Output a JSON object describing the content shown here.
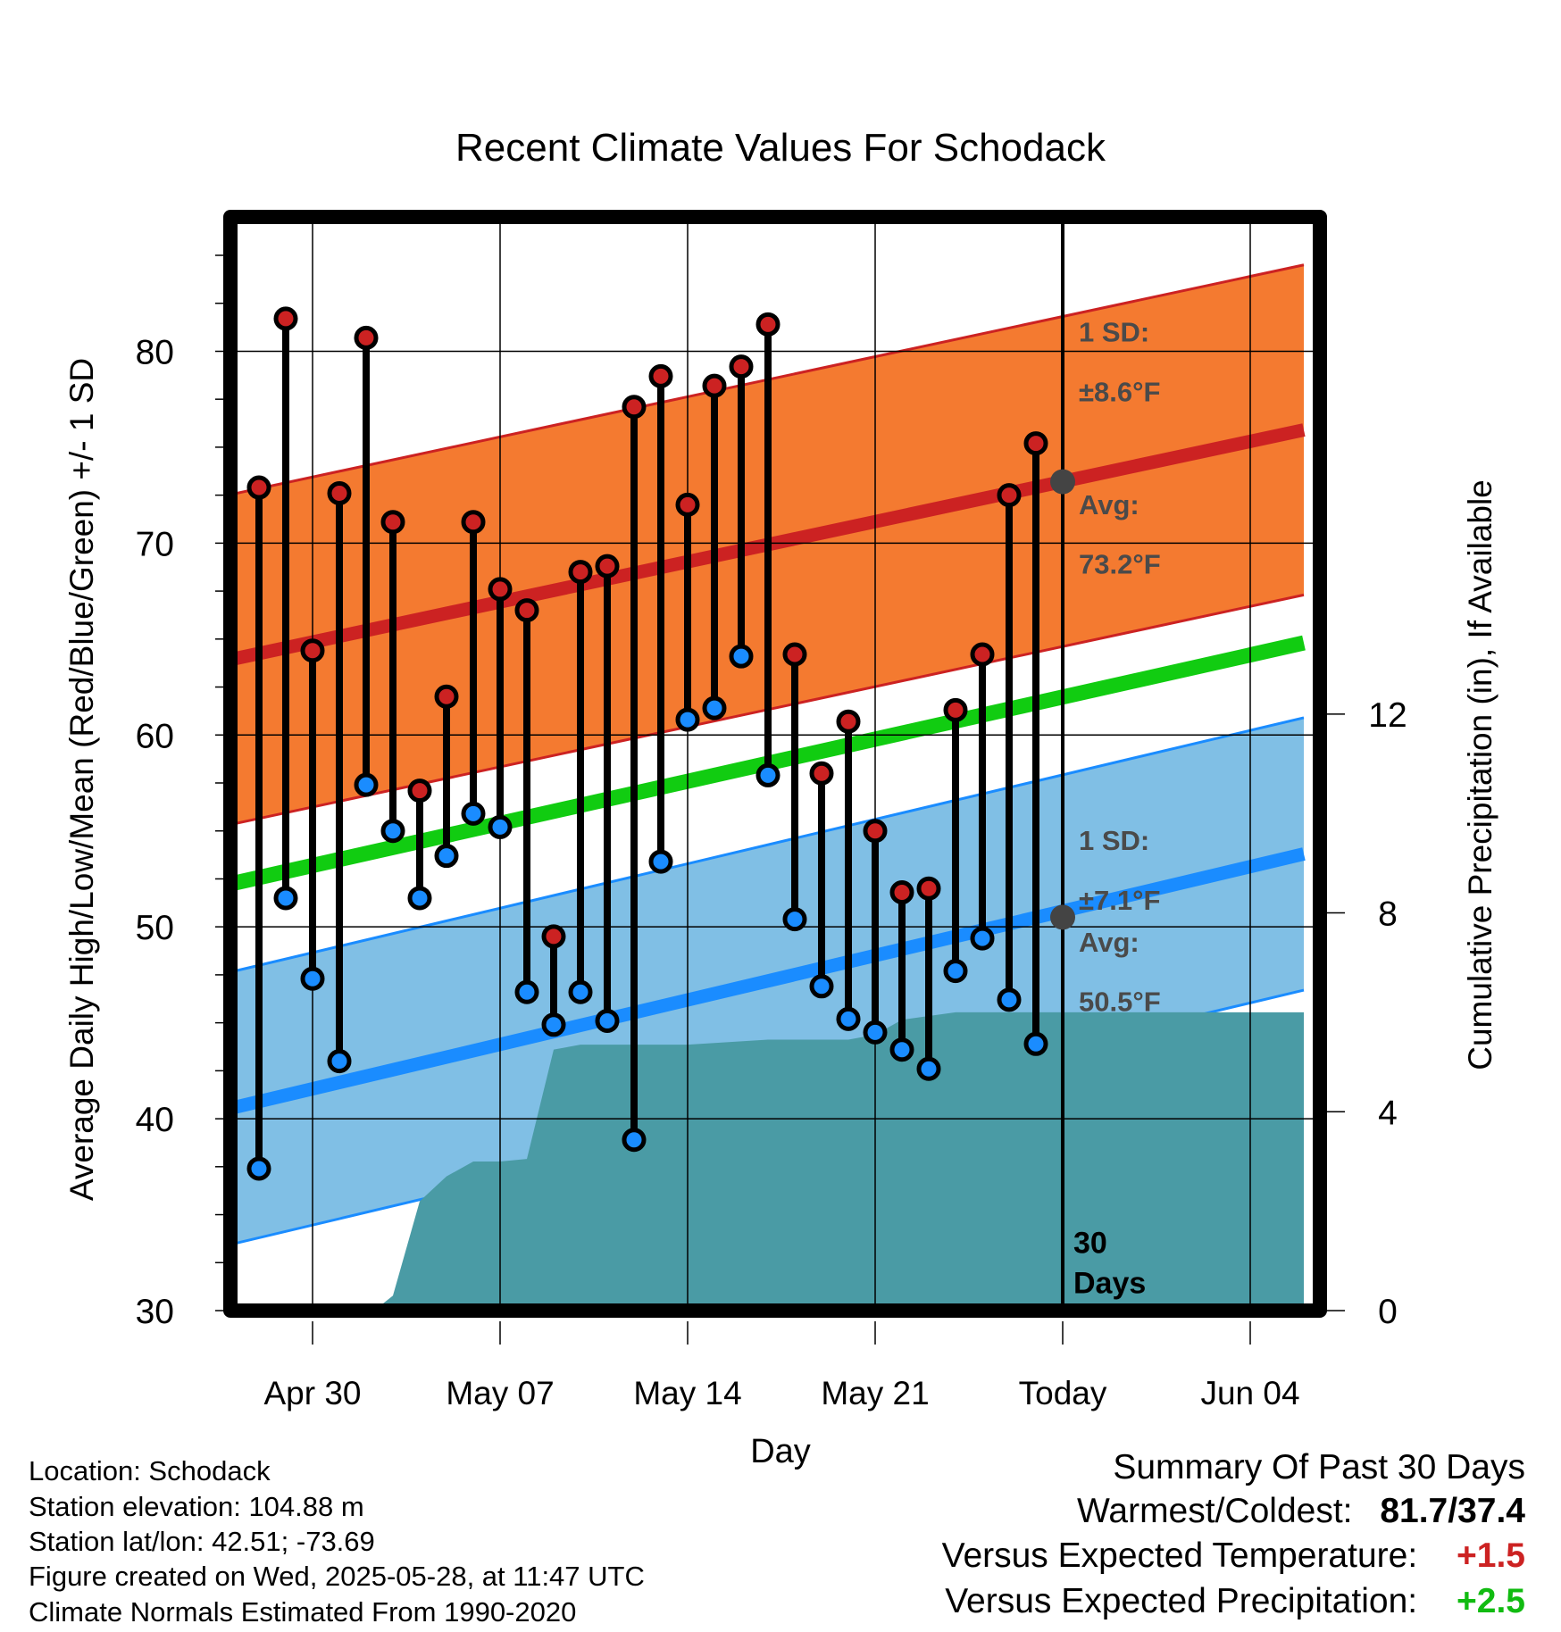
{
  "chart_data": {
    "type": "range-bar",
    "title": "Recent Climate Values For Schodack",
    "xlabel": "Day",
    "ylabel": "Average Daily High/Low/Mean (Red/Blue/Green) +/- 1 SD",
    "y2label": "Cumulative Precipitation (in), If Available",
    "ylim": [
      30,
      87
    ],
    "y2lim": [
      0,
      22
    ],
    "xlim": [
      -3.5,
      37
    ],
    "y_ticks": [
      30,
      40,
      50,
      60,
      70,
      80
    ],
    "y_tick_labels": [
      "30",
      "40",
      "50",
      "60",
      "70",
      "80"
    ],
    "y2_ticks": [
      0,
      4,
      8,
      12
    ],
    "y2_tick_labels": [
      "0",
      "4",
      "8",
      "12"
    ],
    "x_ticks": [
      0,
      7,
      14,
      21,
      28,
      35
    ],
    "x_tick_labels": [
      "Apr 30",
      "May 07",
      "May 14",
      "May 21",
      "Today",
      "Jun 04"
    ],
    "today_index": 28,
    "today_label": "30\nDays",
    "grid": true,
    "days": [
      -2,
      -1,
      0,
      1,
      2,
      3,
      4,
      5,
      6,
      7,
      8,
      9,
      10,
      11,
      12,
      13,
      14,
      15,
      16,
      17,
      18,
      19,
      20,
      21,
      22,
      23,
      24,
      25,
      26,
      27
    ],
    "highs": [
      72.9,
      81.7,
      64.4,
      72.6,
      80.7,
      71.1,
      57.1,
      62.0,
      71.1,
      67.6,
      66.5,
      49.5,
      68.5,
      68.8,
      77.1,
      78.7,
      72.0,
      78.2,
      79.2,
      81.4,
      64.2,
      58.0,
      60.7,
      55.0,
      51.8,
      52.0,
      61.3,
      64.2,
      72.5,
      75.2
    ],
    "lows": [
      37.4,
      51.5,
      47.3,
      43.0,
      57.4,
      55.0,
      51.5,
      53.7,
      55.9,
      55.2,
      46.6,
      44.9,
      46.6,
      45.1,
      38.9,
      53.4,
      60.8,
      61.4,
      64.1,
      57.9,
      50.4,
      46.9,
      45.2,
      44.5,
      43.6,
      42.6,
      47.7,
      49.4,
      46.2,
      43.9
    ],
    "normal_high": {
      "start": 63.8,
      "end": 75.9,
      "sd": 8.6
    },
    "normal_low": {
      "start": 40.4,
      "end": 53.8,
      "sd": 7.1
    },
    "normal_mean": {
      "start": 52.1,
      "end": 64.8
    },
    "precip_cumulative": [
      {
        "day": -3.5,
        "value": 0.0
      },
      {
        "day": 2.3,
        "value": 0.0
      },
      {
        "day": 3.0,
        "value": 0.3
      },
      {
        "day": 4.0,
        "value": 2.2
      },
      {
        "day": 5.0,
        "value": 2.7
      },
      {
        "day": 6.0,
        "value": 3.0
      },
      {
        "day": 7.0,
        "value": 3.0
      },
      {
        "day": 8.0,
        "value": 3.05
      },
      {
        "day": 9.0,
        "value": 5.25
      },
      {
        "day": 10.0,
        "value": 5.35
      },
      {
        "day": 14.0,
        "value": 5.35
      },
      {
        "day": 17.0,
        "value": 5.45
      },
      {
        "day": 20.0,
        "value": 5.45
      },
      {
        "day": 21.0,
        "value": 5.55
      },
      {
        "day": 22.0,
        "value": 5.85
      },
      {
        "day": 24.0,
        "value": 6.0
      },
      {
        "day": 37.0,
        "value": 6.0
      }
    ],
    "annotations": {
      "high_sd_label": "1 SD:",
      "high_sd_value": "±8.6°F",
      "high_avg_label": "Avg:",
      "high_avg_value": "73.2°F",
      "low_sd_label": "1 SD:",
      "low_sd_value": "±7.1°F",
      "low_avg_label": "Avg:",
      "low_avg_value": "50.5°F",
      "today_high_avg": 73.2,
      "today_low_avg": 50.5
    },
    "colors": {
      "high_band": "#f47a30",
      "high_line": "#cc2222",
      "low_band": "#80bfe5",
      "low_line": "#1a8cff",
      "mean_line": "#11cc11",
      "precip": "#4a9ba5",
      "high_dot": "#cc2222",
      "low_dot": "#1a8cff",
      "annotation_text": "#4a4a4a"
    }
  },
  "footer": {
    "location": "Location: Schodack",
    "elevation": "Station elevation: 104.88 m",
    "latlon": "Station lat/lon: 42.51; -73.69",
    "created": "Figure created on Wed, 2025-05-28, at 11:47 UTC",
    "normals": "Climate Normals Estimated From 1990-2020"
  },
  "summary": {
    "title": "Summary Of Past 30 Days",
    "warm_cold_label": "Warmest/Coldest:",
    "warm_cold_value": "81.7/37.4",
    "temp_label": "Versus Expected Temperature:",
    "temp_value": "+1.5",
    "temp_color": "#cc2222",
    "precip_label": "Versus Expected Precipitation:",
    "precip_value": "+2.5",
    "precip_color": "#11bb11"
  }
}
